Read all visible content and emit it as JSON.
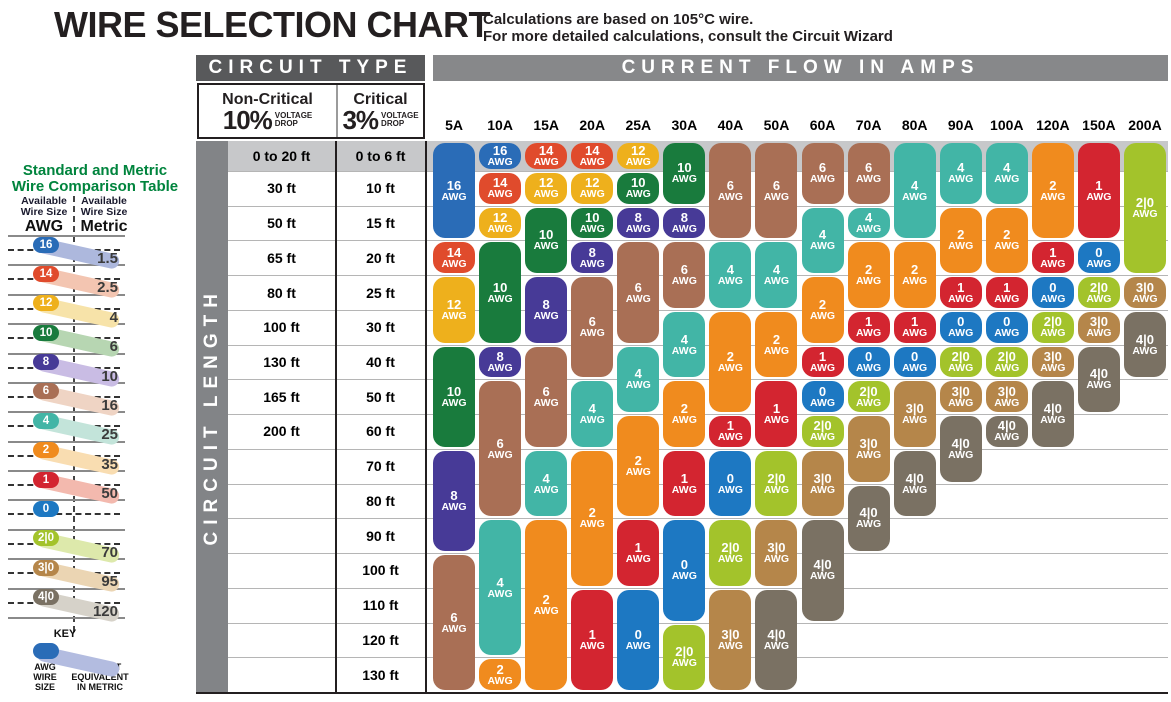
{
  "title": "WIRE SELECTION CHART",
  "subtitle_line1": "Calculations are based on 105°C wire.",
  "subtitle_line2": "For more detailed calculations, consult the Circuit Wizard",
  "awg_suffix": "AWG",
  "colors": {
    "circuit_type_bar": "#58595b",
    "current_flow_bar": "#87888a",
    "length_bar": "#828487",
    "row1_band": "#c7c8ca",
    "sidebar_title_green": "#00843d",
    "key_tail": "#b3bce0",
    "awg": {
      "16": {
        "main": "#2a6cb7",
        "tail": "#adb8dd"
      },
      "14": {
        "main": "#e04b2c",
        "tail": "#f3c5b1"
      },
      "12": {
        "main": "#eeb01c",
        "tail": "#f7e3a9"
      },
      "10": {
        "main": "#197b3d",
        "tail": "#b7d6b2"
      },
      "8": {
        "main": "#473a97",
        "tail": "#c9bce4"
      },
      "6": {
        "main": "#a96f55",
        "tail": "#efd4c4"
      },
      "4": {
        "main": "#42b5a6",
        "tail": "#c3e4da"
      },
      "2": {
        "main": "#f08b1e",
        "tail": "#f9ddb1"
      },
      "1": {
        "main": "#d32530",
        "tail": "#f3b9ae"
      },
      "0": {
        "main": "#1d78c2",
        "tail": null
      },
      "2|0": {
        "main": "#a3c32b",
        "tail": "#dde9ab"
      },
      "3|0": {
        "main": "#b5864a",
        "tail": "#ebd5b3"
      },
      "4|0": {
        "main": "#7a7163",
        "tail": "#d6d2c9"
      }
    }
  },
  "comparison_table": {
    "title_line1": "Standard and Metric",
    "title_line2": "Wire Comparison Table",
    "header_line1": "Available",
    "header_line2": "Wire Size",
    "col1_unit": "AWG",
    "col2_unit": "Metric",
    "rows": [
      {
        "awg": "16",
        "metric": "1.5"
      },
      {
        "awg": "14",
        "metric": "2.5"
      },
      {
        "awg": "12",
        "metric": "4"
      },
      {
        "awg": "10",
        "metric": "6"
      },
      {
        "awg": "8",
        "metric": "10"
      },
      {
        "awg": "6",
        "metric": "16"
      },
      {
        "awg": "4",
        "metric": "25"
      },
      {
        "awg": "2",
        "metric": "35"
      },
      {
        "awg": "1",
        "metric": "50"
      },
      {
        "awg": "0",
        "metric": ""
      },
      {
        "awg": "2|0",
        "metric": "70"
      },
      {
        "awg": "3|0",
        "metric": "95"
      },
      {
        "awg": "4|0",
        "metric": "120"
      }
    ],
    "key_title": "KEY",
    "key_left_lines": [
      "AWG",
      "WIRE",
      "SIZE"
    ],
    "key_right_lines": [
      "CLOSEST",
      "EQUIVALENT",
      "IN METRIC"
    ]
  },
  "circuit_type": {
    "header": "CIRCUIT TYPE",
    "non_critical_label": "Non-Critical",
    "non_critical_pct": "10%",
    "critical_label": "Critical",
    "critical_pct": "3%",
    "voltage_word": "VOLTAGE",
    "drop_word": "DROP"
  },
  "current_flow_header": "CURRENT FLOW IN AMPS",
  "circuit_length_label": "CIRCUIT LENGTH",
  "chart_data": {
    "type": "table",
    "row_header": "CIRCUIT LENGTH",
    "column_header": "CURRENT FLOW IN AMPS",
    "length_rows": [
      {
        "non_critical": "0 to 20 ft",
        "critical": "0 to 6 ft"
      },
      {
        "non_critical": "30 ft",
        "critical": "10 ft"
      },
      {
        "non_critical": "50 ft",
        "critical": "15 ft"
      },
      {
        "non_critical": "65 ft",
        "critical": "20 ft"
      },
      {
        "non_critical": "80 ft",
        "critical": "25 ft"
      },
      {
        "non_critical": "100 ft",
        "critical": "30 ft"
      },
      {
        "non_critical": "130 ft",
        "critical": "40 ft"
      },
      {
        "non_critical": "165 ft",
        "critical": "50 ft"
      },
      {
        "non_critical": "200 ft",
        "critical": "60 ft"
      },
      {
        "non_critical": "",
        "critical": "70 ft"
      },
      {
        "non_critical": "",
        "critical": "80 ft"
      },
      {
        "non_critical": "",
        "critical": "90 ft"
      },
      {
        "non_critical": "",
        "critical": "100 ft"
      },
      {
        "non_critical": "",
        "critical": "110 ft"
      },
      {
        "non_critical": "",
        "critical": "120 ft"
      },
      {
        "non_critical": "",
        "critical": "130 ft"
      }
    ],
    "columns": [
      {
        "amps": "5A",
        "segments": [
          {
            "awg": "16",
            "from": 1,
            "to": 3
          },
          {
            "awg": "14",
            "from": 4,
            "to": 4
          },
          {
            "awg": "12",
            "from": 5,
            "to": 6
          },
          {
            "awg": "10",
            "from": 7,
            "to": 9
          },
          {
            "awg": "8",
            "from": 10,
            "to": 12
          },
          {
            "awg": "6",
            "from": 13,
            "to": 16
          }
        ]
      },
      {
        "amps": "10A",
        "segments": [
          {
            "awg": "16",
            "from": 1,
            "to": 1
          },
          {
            "awg": "14",
            "from": 2,
            "to": 2
          },
          {
            "awg": "12",
            "from": 3,
            "to": 3
          },
          {
            "awg": "10",
            "from": 4,
            "to": 6
          },
          {
            "awg": "8",
            "from": 7,
            "to": 7
          },
          {
            "awg": "6",
            "from": 8,
            "to": 11
          },
          {
            "awg": "4",
            "from": 12,
            "to": 15
          },
          {
            "awg": "2",
            "from": 16,
            "to": 16
          }
        ]
      },
      {
        "amps": "15A",
        "segments": [
          {
            "awg": "14",
            "from": 1,
            "to": 1
          },
          {
            "awg": "12",
            "from": 2,
            "to": 2
          },
          {
            "awg": "10",
            "from": 3,
            "to": 4
          },
          {
            "awg": "8",
            "from": 5,
            "to": 6
          },
          {
            "awg": "6",
            "from": 7,
            "to": 9
          },
          {
            "awg": "4",
            "from": 10,
            "to": 11
          },
          {
            "awg": "2",
            "from": 12,
            "to": 16
          }
        ]
      },
      {
        "amps": "20A",
        "segments": [
          {
            "awg": "14",
            "from": 1,
            "to": 1
          },
          {
            "awg": "12",
            "from": 2,
            "to": 2
          },
          {
            "awg": "10",
            "from": 3,
            "to": 3
          },
          {
            "awg": "8",
            "from": 4,
            "to": 4
          },
          {
            "awg": "6",
            "from": 5,
            "to": 7
          },
          {
            "awg": "4",
            "from": 8,
            "to": 9
          },
          {
            "awg": "2",
            "from": 10,
            "to": 13
          },
          {
            "awg": "1",
            "from": 14,
            "to": 16
          }
        ]
      },
      {
        "amps": "25A",
        "segments": [
          {
            "awg": "12",
            "from": 1,
            "to": 1
          },
          {
            "awg": "10",
            "from": 2,
            "to": 2
          },
          {
            "awg": "8",
            "from": 3,
            "to": 3
          },
          {
            "awg": "6",
            "from": 4,
            "to": 6
          },
          {
            "awg": "4",
            "from": 7,
            "to": 8
          },
          {
            "awg": "2",
            "from": 9,
            "to": 11
          },
          {
            "awg": "1",
            "from": 12,
            "to": 13
          },
          {
            "awg": "0",
            "from": 14,
            "to": 16
          }
        ]
      },
      {
        "amps": "30A",
        "segments": [
          {
            "awg": "10",
            "from": 1,
            "to": 2
          },
          {
            "awg": "8",
            "from": 3,
            "to": 3
          },
          {
            "awg": "6",
            "from": 4,
            "to": 5
          },
          {
            "awg": "4",
            "from": 6,
            "to": 7
          },
          {
            "awg": "2",
            "from": 8,
            "to": 9
          },
          {
            "awg": "1",
            "from": 10,
            "to": 11
          },
          {
            "awg": "0",
            "from": 12,
            "to": 14
          },
          {
            "awg": "2|0",
            "from": 15,
            "to": 16
          }
        ]
      },
      {
        "amps": "40A",
        "segments": [
          {
            "awg": "6",
            "from": 1,
            "to": 3
          },
          {
            "awg": "4",
            "from": 4,
            "to": 5
          },
          {
            "awg": "2",
            "from": 6,
            "to": 8
          },
          {
            "awg": "1",
            "from": 9,
            "to": 9
          },
          {
            "awg": "0",
            "from": 10,
            "to": 11
          },
          {
            "awg": "2|0",
            "from": 12,
            "to": 13
          },
          {
            "awg": "3|0",
            "from": 14,
            "to": 16
          }
        ]
      },
      {
        "amps": "50A",
        "segments": [
          {
            "awg": "6",
            "from": 1,
            "to": 3
          },
          {
            "awg": "4",
            "from": 4,
            "to": 5
          },
          {
            "awg": "2",
            "from": 6,
            "to": 7
          },
          {
            "awg": "1",
            "from": 8,
            "to": 9
          },
          {
            "awg": "2|0",
            "from": 10,
            "to": 11
          },
          {
            "awg": "3|0",
            "from": 12,
            "to": 13
          },
          {
            "awg": "4|0",
            "from": 14,
            "to": 16
          }
        ]
      },
      {
        "amps": "60A",
        "segments": [
          {
            "awg": "6",
            "from": 1,
            "to": 2
          },
          {
            "awg": "4",
            "from": 3,
            "to": 4
          },
          {
            "awg": "2",
            "from": 5,
            "to": 6
          },
          {
            "awg": "1",
            "from": 7,
            "to": 7
          },
          {
            "awg": "0",
            "from": 8,
            "to": 8
          },
          {
            "awg": "2|0",
            "from": 9,
            "to": 9
          },
          {
            "awg": "3|0",
            "from": 10,
            "to": 11
          },
          {
            "awg": "4|0",
            "from": 12,
            "to": 14
          }
        ]
      },
      {
        "amps": "70A",
        "segments": [
          {
            "awg": "6",
            "from": 1,
            "to": 2
          },
          {
            "awg": "4",
            "from": 3,
            "to": 3
          },
          {
            "awg": "2",
            "from": 4,
            "to": 5
          },
          {
            "awg": "1",
            "from": 6,
            "to": 6
          },
          {
            "awg": "0",
            "from": 7,
            "to": 7
          },
          {
            "awg": "2|0",
            "from": 8,
            "to": 8
          },
          {
            "awg": "3|0",
            "from": 9,
            "to": 10
          },
          {
            "awg": "4|0",
            "from": 11,
            "to": 12
          }
        ]
      },
      {
        "amps": "80A",
        "segments": [
          {
            "awg": "4",
            "from": 1,
            "to": 3
          },
          {
            "awg": "2",
            "from": 4,
            "to": 5
          },
          {
            "awg": "1",
            "from": 6,
            "to": 6
          },
          {
            "awg": "0",
            "from": 7,
            "to": 7
          },
          {
            "awg": "3|0",
            "from": 8,
            "to": 9
          },
          {
            "awg": "4|0",
            "from": 10,
            "to": 11
          }
        ]
      },
      {
        "amps": "90A",
        "segments": [
          {
            "awg": "4",
            "from": 1,
            "to": 2
          },
          {
            "awg": "2",
            "from": 3,
            "to": 4
          },
          {
            "awg": "1",
            "from": 5,
            "to": 5
          },
          {
            "awg": "0",
            "from": 6,
            "to": 6
          },
          {
            "awg": "2|0",
            "from": 7,
            "to": 7
          },
          {
            "awg": "3|0",
            "from": 8,
            "to": 8
          },
          {
            "awg": "4|0",
            "from": 9,
            "to": 10
          }
        ]
      },
      {
        "amps": "100A",
        "segments": [
          {
            "awg": "4",
            "from": 1,
            "to": 2
          },
          {
            "awg": "2",
            "from": 3,
            "to": 4
          },
          {
            "awg": "1",
            "from": 5,
            "to": 5
          },
          {
            "awg": "0",
            "from": 6,
            "to": 6
          },
          {
            "awg": "2|0",
            "from": 7,
            "to": 7
          },
          {
            "awg": "3|0",
            "from": 8,
            "to": 8
          },
          {
            "awg": "4|0",
            "from": 9,
            "to": 9
          }
        ]
      },
      {
        "amps": "120A",
        "segments": [
          {
            "awg": "2",
            "from": 1,
            "to": 3
          },
          {
            "awg": "1",
            "from": 4,
            "to": 4
          },
          {
            "awg": "0",
            "from": 5,
            "to": 5
          },
          {
            "awg": "2|0",
            "from": 6,
            "to": 6
          },
          {
            "awg": "3|0",
            "from": 7,
            "to": 7
          },
          {
            "awg": "4|0",
            "from": 8,
            "to": 9
          }
        ]
      },
      {
        "amps": "150A",
        "segments": [
          {
            "awg": "1",
            "from": 1,
            "to": 3
          },
          {
            "awg": "0",
            "from": 4,
            "to": 4
          },
          {
            "awg": "2|0",
            "from": 5,
            "to": 5
          },
          {
            "awg": "3|0",
            "from": 6,
            "to": 6
          },
          {
            "awg": "4|0",
            "from": 7,
            "to": 8
          }
        ]
      },
      {
        "amps": "200A",
        "segments": [
          {
            "awg": "2|0",
            "from": 1,
            "to": 4
          },
          {
            "awg": "3|0",
            "from": 5,
            "to": 5
          },
          {
            "awg": "4|0",
            "from": 6,
            "to": 7
          }
        ]
      }
    ]
  }
}
